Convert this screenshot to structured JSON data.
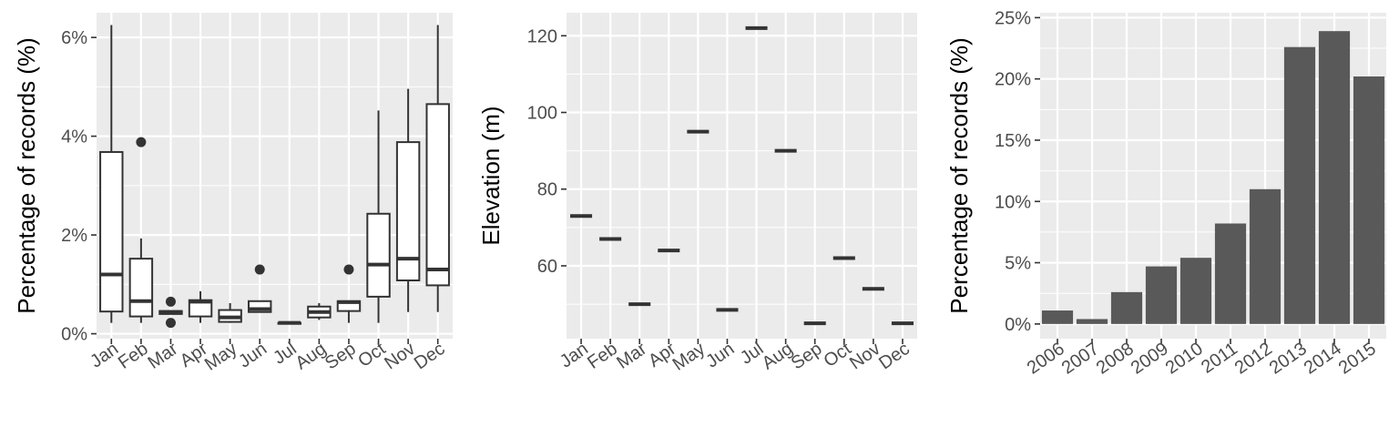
{
  "chart_data": [
    {
      "type": "box",
      "ylabel": "Percentage of records (%)",
      "ylim": [
        -0.1,
        6.5
      ],
      "yticks": [
        0,
        2,
        4,
        6
      ],
      "ytick_labels": [
        "0%",
        "2%",
        "4%",
        "6%"
      ],
      "categories": [
        "Jan",
        "Feb",
        "Mar",
        "Apr",
        "May",
        "Jun",
        "Jul",
        "Aug",
        "Sep",
        "Oct",
        "Nov",
        "Dec"
      ],
      "boxes": [
        {
          "min": 0.22,
          "q1": 0.45,
          "median": 1.2,
          "q3": 3.68,
          "max": 6.25,
          "outliers": []
        },
        {
          "min": 0.22,
          "q1": 0.35,
          "median": 0.66,
          "q3": 1.52,
          "max": 1.93,
          "outliers": [
            3.88
          ]
        },
        {
          "min": 0.4,
          "q1": 0.4,
          "median": 0.44,
          "q3": 0.46,
          "max": 0.46,
          "outliers": [
            0.65,
            0.22
          ]
        },
        {
          "min": 0.22,
          "q1": 0.35,
          "median": 0.65,
          "q3": 0.68,
          "max": 0.86,
          "outliers": []
        },
        {
          "min": 0.22,
          "q1": 0.24,
          "median": 0.33,
          "q3": 0.48,
          "max": 0.62,
          "outliers": []
        },
        {
          "min": 0.44,
          "q1": 0.44,
          "median": 0.5,
          "q3": 0.66,
          "max": 0.66,
          "outliers": [
            1.3
          ]
        },
        {
          "min": 0.22,
          "q1": 0.22,
          "median": 0.22,
          "q3": 0.22,
          "max": 0.22,
          "outliers": []
        },
        {
          "min": 0.28,
          "q1": 0.33,
          "median": 0.44,
          "q3": 0.55,
          "max": 0.62,
          "outliers": []
        },
        {
          "min": 0.22,
          "q1": 0.46,
          "median": 0.64,
          "q3": 0.66,
          "max": 0.66,
          "outliers": [
            1.3
          ]
        },
        {
          "min": 0.22,
          "q1": 0.75,
          "median": 1.4,
          "q3": 2.43,
          "max": 4.52,
          "outliers": []
        },
        {
          "min": 0.44,
          "q1": 1.08,
          "median": 1.52,
          "q3": 3.88,
          "max": 4.96,
          "outliers": []
        },
        {
          "min": 0.44,
          "q1": 0.98,
          "median": 1.3,
          "q3": 4.65,
          "max": 6.25,
          "outliers": []
        }
      ]
    },
    {
      "type": "box",
      "ylabel": "Elevation (m)",
      "ylim": [
        41,
        126
      ],
      "yticks": [
        60,
        80,
        100,
        120
      ],
      "ytick_labels": [
        "60",
        "80",
        "100",
        "120"
      ],
      "categories": [
        "Jan",
        "Feb",
        "Mar",
        "Apr",
        "May",
        "Jun",
        "Jul",
        "Aug",
        "Sep",
        "Oct",
        "Nov",
        "Dec"
      ],
      "values": [
        73,
        67,
        50,
        64,
        95,
        48.5,
        122,
        90,
        45,
        62,
        54,
        45
      ]
    },
    {
      "type": "bar",
      "ylabel": "Percentage of records (%)",
      "ylim": [
        -1.2,
        25.4
      ],
      "yticks": [
        0,
        5,
        10,
        15,
        20,
        25
      ],
      "ytick_labels": [
        "0%",
        "5%",
        "10%",
        "15%",
        "20%",
        "25%"
      ],
      "categories": [
        "2006",
        "2007",
        "2008",
        "2009",
        "2010",
        "2011",
        "2012",
        "2013",
        "2014",
        "2015"
      ],
      "values": [
        1.1,
        0.4,
        2.6,
        4.7,
        5.4,
        8.2,
        11.0,
        22.6,
        23.9,
        20.2
      ]
    }
  ]
}
